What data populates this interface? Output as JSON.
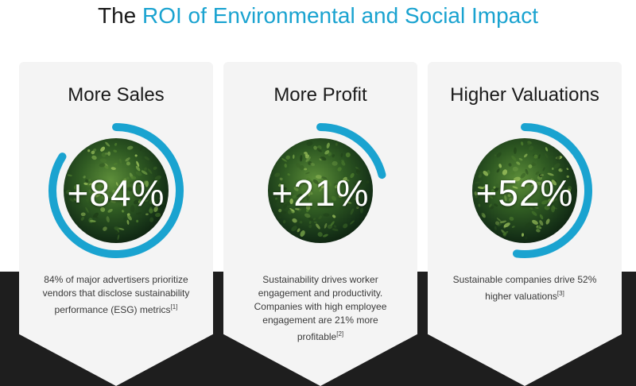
{
  "title": {
    "prefix": "The",
    "accent": "ROI of Environmental and Social Impact"
  },
  "colors": {
    "accent": "#1aa3d0",
    "dark_band": "#1e1e1e",
    "card_bg": "#f4f4f4"
  },
  "cards": [
    {
      "heading": "More Sales",
      "value": "+84%",
      "progress": 0.84,
      "description": "84% of major advertisers prioritize vendors that disclose sustainability performance (ESG) metrics",
      "ref": "[1]"
    },
    {
      "heading": "More Profit",
      "value": "+21%",
      "progress": 0.21,
      "description": "Sustainability drives worker engagement and productivity. Companies with high employee engagement are 21% more profitable",
      "ref": "[2]"
    },
    {
      "heading": "Higher Valuations",
      "value": "+52%",
      "progress": 0.52,
      "description": "Sustainable companies drive 52% higher valuations",
      "ref": "[3]"
    }
  ]
}
